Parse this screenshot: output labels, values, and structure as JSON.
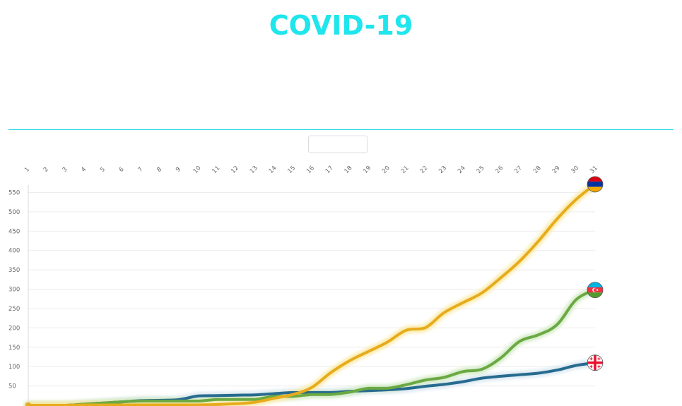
{
  "header": {
    "title": "COVID-19"
  },
  "colors": {
    "title": "#1ee6ec",
    "divider": "#2fdfe6"
  },
  "selector": {
    "value": ""
  },
  "chart_data": {
    "type": "line",
    "x": [
      1,
      2,
      3,
      4,
      5,
      6,
      7,
      8,
      9,
      10,
      11,
      12,
      13,
      14,
      15,
      16,
      17,
      18,
      19,
      20,
      21,
      22,
      23,
      24,
      25,
      26,
      27,
      28,
      29,
      30,
      31
    ],
    "x_tick_labels": [
      "1",
      "2",
      "3",
      "4",
      "5",
      "6",
      "7",
      "8",
      "9",
      "10",
      "11",
      "12",
      "13",
      "14",
      "15",
      "16",
      "17",
      "18",
      "19",
      "20",
      "21",
      "22",
      "23",
      "24",
      "25",
      "26",
      "27",
      "28",
      "29",
      "30",
      "31"
    ],
    "y_ticks": [
      50,
      100,
      150,
      200,
      250,
      300,
      350,
      400,
      450,
      500,
      550
    ],
    "ylim": [
      0,
      575
    ],
    "grid": true,
    "series": [
      {
        "color": "#e6ac1c",
        "glow": "#fbe9a6",
        "flag_icon": "armenia-flag-icon",
        "values": [
          0,
          0,
          0,
          1,
          1,
          1,
          1,
          1,
          1,
          1,
          2,
          4,
          8,
          18,
          28,
          46,
          84,
          115,
          139,
          163,
          194,
          200,
          239,
          265,
          290,
          329,
          372,
          424,
          482,
          532,
          571
        ]
      },
      {
        "color": "#6aa943",
        "glow": "#d3ebc5",
        "flag_icon": "azerbaijan-flag-icon",
        "values": [
          0,
          0,
          0,
          3,
          6,
          9,
          11,
          11,
          11,
          11,
          15,
          15,
          15,
          23,
          23,
          28,
          28,
          34,
          44,
          44,
          53,
          65,
          72,
          87,
          93,
          122,
          165,
          182,
          209,
          273,
          298
        ]
      },
      {
        "color": "#276b8f",
        "glow": "#d9e7f1",
        "flag_icon": "georgia-flag-icon",
        "values": [
          0,
          0,
          0,
          3,
          6,
          9,
          12,
          13,
          15,
          24,
          25,
          26,
          27,
          30,
          33,
          33,
          33,
          36,
          38,
          40,
          43,
          49,
          54,
          61,
          70,
          75,
          79,
          83,
          91,
          103,
          110
        ]
      }
    ]
  }
}
